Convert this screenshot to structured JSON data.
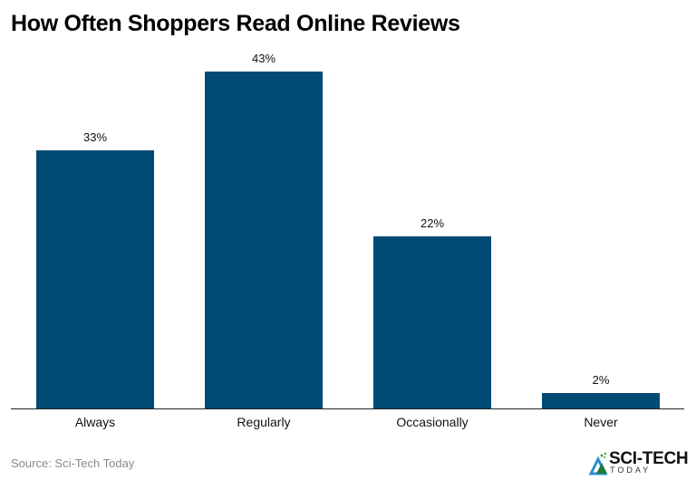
{
  "title": "How Often Shoppers Read Online Reviews",
  "source": "Source: Sci-Tech Today",
  "logo": {
    "main": "SCI-TECH",
    "sub": "TODAY"
  },
  "colors": {
    "bar": "#004a76",
    "text": "#111111",
    "source": "#8a8a8a"
  },
  "chart_data": {
    "type": "bar",
    "title": "How Often Shoppers Read Online Reviews",
    "categories": [
      "Always",
      "Regularly",
      "Occasionally",
      "Never"
    ],
    "values": [
      33,
      43,
      22,
      2
    ],
    "value_labels": [
      "33%",
      "43%",
      "22%",
      "2%"
    ],
    "xlabel": "",
    "ylabel": "",
    "unit": "%",
    "grid": false,
    "legend": "none",
    "ylim": [
      0,
      43
    ]
  }
}
